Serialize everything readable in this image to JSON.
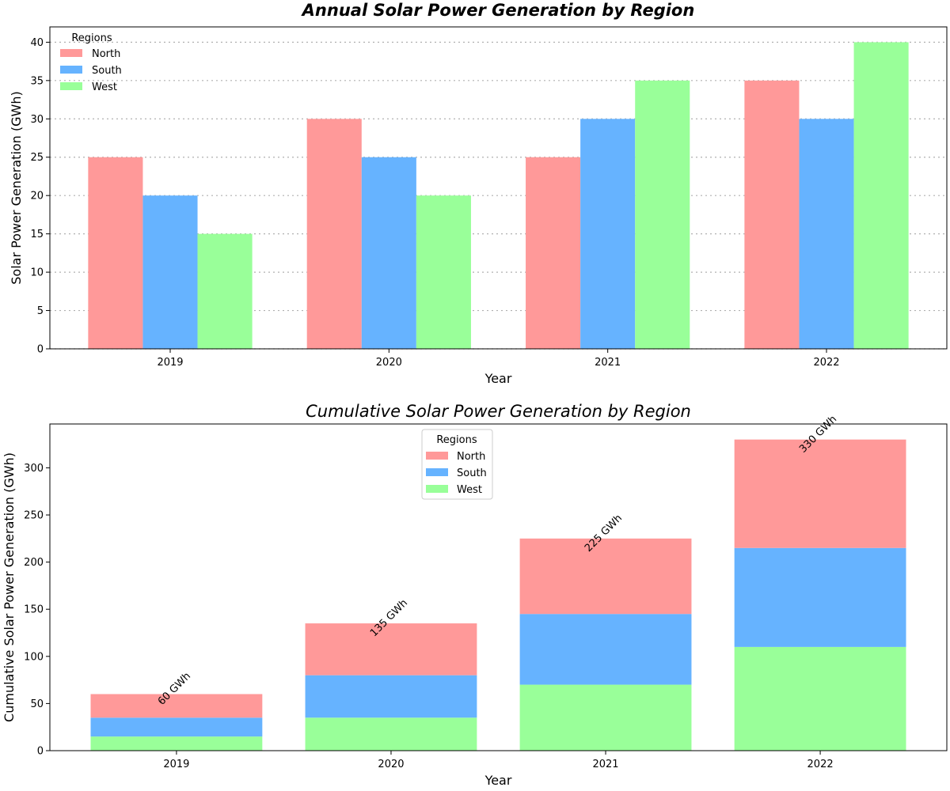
{
  "chart_data": [
    {
      "type": "bar",
      "title": "Annual Solar Power Generation by Region",
      "xlabel": "Year",
      "ylabel": "Solar Power Generation (GWh)",
      "categories": [
        "2019",
        "2020",
        "2021",
        "2022"
      ],
      "ylim": [
        0,
        42
      ],
      "yticks": [
        0,
        5,
        10,
        15,
        20,
        25,
        30,
        35,
        40
      ],
      "grid": "y-dotted",
      "legend": {
        "title": "Regions",
        "placement": "top-left"
      },
      "series": [
        {
          "name": "North",
          "color": "#ff9999",
          "values": [
            25,
            30,
            25,
            35
          ]
        },
        {
          "name": "South",
          "color": "#66b3ff",
          "values": [
            20,
            25,
            30,
            30
          ]
        },
        {
          "name": "West",
          "color": "#99ff99",
          "values": [
            15,
            20,
            35,
            40
          ]
        }
      ]
    },
    {
      "type": "bar",
      "stacked": true,
      "title": "Cumulative Solar Power Generation by Region",
      "xlabel": "Year",
      "ylabel": "Cumulative Solar Power Generation (GWh)",
      "categories": [
        "2019",
        "2020",
        "2021",
        "2022"
      ],
      "ylim": [
        0,
        346.5
      ],
      "yticks": [
        0,
        50,
        100,
        150,
        200,
        250,
        300
      ],
      "grid": "none",
      "legend": {
        "title": "Regions",
        "placement": "top-center"
      },
      "series": [
        {
          "name": "West",
          "color": "#99ff99",
          "values": [
            15,
            35,
            70,
            110
          ]
        },
        {
          "name": "South",
          "color": "#66b3ff",
          "values": [
            20,
            45,
            75,
            105
          ]
        },
        {
          "name": "North",
          "color": "#ff9999",
          "values": [
            25,
            55,
            80,
            115
          ]
        }
      ],
      "totals": [
        60,
        135,
        225,
        330
      ],
      "total_labels": [
        "60 GWh",
        "135 GWh",
        "225 GWh",
        "330 GWh"
      ]
    }
  ]
}
